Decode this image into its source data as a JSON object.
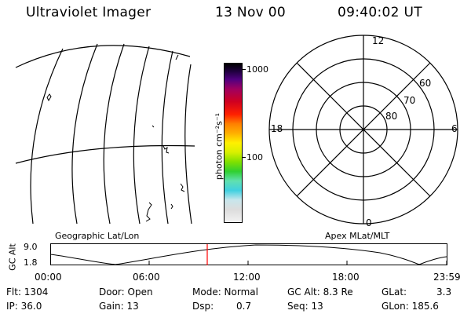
{
  "header": {
    "instrument": "Ultraviolet Imager",
    "date": "13 Nov 00",
    "time": "09:40:02 UT"
  },
  "colorbar": {
    "unit_label": "photon cm⁻²s⁻¹",
    "tick_high": "1000",
    "tick_low": "100",
    "colors": [
      "#f2f2f2",
      "#dcdcdc",
      "#c8e6ec",
      "#40d0e0",
      "#60e0b0",
      "#30d030",
      "#80e000",
      "#d8f000",
      "#fff000",
      "#ffb000",
      "#ff8000",
      "#ff2000",
      "#d00020",
      "#a00060",
      "#500080",
      "#200040",
      "#000000"
    ]
  },
  "left_map": {
    "label": "Geographic Lat/Lon"
  },
  "polar_plot": {
    "label": "Apex MLat/MLT",
    "mlt_labels": {
      "top": "12",
      "bottom": "0",
      "left": "18",
      "right": "6"
    },
    "lat_labels": [
      "60",
      "70",
      "80"
    ]
  },
  "altitude_plot": {
    "ylabel": "GC Alt",
    "y_ticks": [
      "9.0",
      "1.8"
    ],
    "x_ticks": [
      "00:00",
      "06:00",
      "12:00",
      "18:00",
      "23:59"
    ],
    "current_time_color": "#ff0000"
  },
  "footer": {
    "flt": "Flt: 1304",
    "ip": "IP: 36.0",
    "door": "Door: Open",
    "gain": "Gain: 13",
    "mode": "Mode: Normal",
    "dsp_label": "Dsp:",
    "dsp_value": "0.7",
    "gcalt": "GC Alt: 8.3 Re",
    "seq": "Seq: 13",
    "glat_label": "GLat:",
    "glat_value": "3.3",
    "glon": "GLon: 185.6"
  }
}
